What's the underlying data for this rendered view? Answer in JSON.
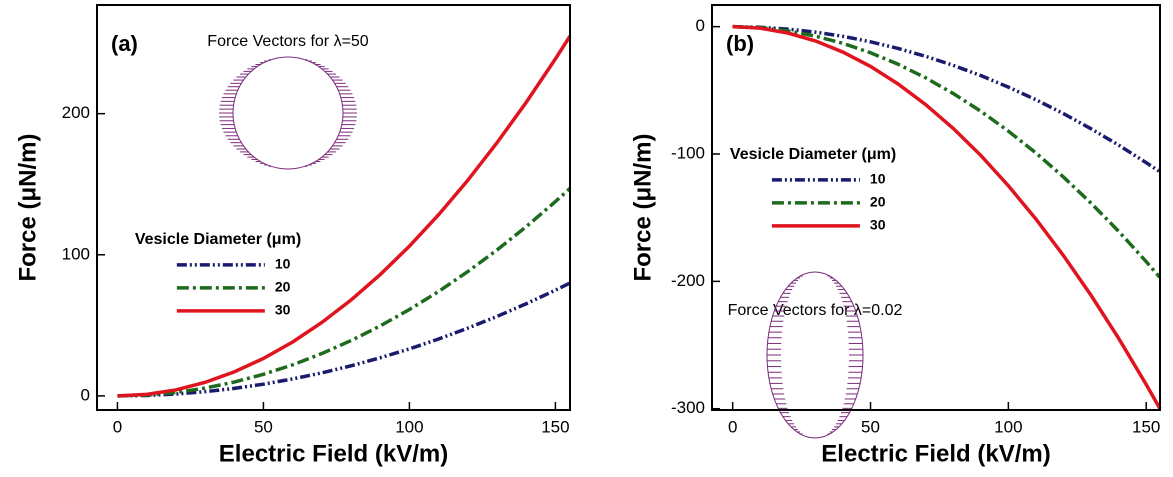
{
  "chart_data": [
    {
      "type": "line",
      "panel_label": "(a)",
      "xlabel": "Electric Field (kV/m)",
      "ylabel": "Force (μN/m)",
      "xlim": [
        -7,
        155
      ],
      "ylim": [
        -10,
        277
      ],
      "xticks": [
        0,
        50,
        100,
        150
      ],
      "yticks": [
        0,
        100,
        200
      ],
      "legend_title": "Vesicle Diameter (μm)",
      "legend": "center-left",
      "annotation": "Force Vectors for λ=50",
      "x": [
        0,
        10,
        20,
        30,
        40,
        50,
        60,
        70,
        80,
        90,
        100,
        110,
        120,
        130,
        140,
        150,
        155
      ],
      "series": [
        {
          "name": "10",
          "color": "#1a1a6e",
          "style": "dash-dot-dot",
          "values": [
            0,
            0.3,
            1.3,
            3.0,
            5.3,
            8.3,
            12.0,
            16.3,
            21.3,
            27.0,
            33.3,
            40.3,
            48.0,
            56.3,
            65.3,
            74.9,
            80
          ]
        },
        {
          "name": "20",
          "color": "#1e6b1e",
          "style": "dash-dot",
          "values": [
            0,
            0.6,
            2.4,
            5.5,
            9.8,
            15.3,
            22.0,
            30.0,
            39.2,
            49.6,
            61.2,
            74.0,
            88.1,
            103.4,
            119.9,
            137.7,
            147
          ]
        },
        {
          "name": "30",
          "color": "#e0141e",
          "style": "solid",
          "values": [
            0,
            1.1,
            4.2,
            9.6,
            17.0,
            26.5,
            38.2,
            52.0,
            67.9,
            86.0,
            106.1,
            128.4,
            152.8,
            179.4,
            208.0,
            238.8,
            255
          ]
        }
      ]
    },
    {
      "type": "line",
      "panel_label": "(b)",
      "xlabel": "Electric Field (kV/m)",
      "ylabel": "Force (μN/m)",
      "xlim": [
        -7.5,
        155
      ],
      "ylim": [
        -301,
        17
      ],
      "xticks": [
        0,
        50,
        100,
        150
      ],
      "yticks": [
        0,
        -100,
        -200,
        -300
      ],
      "legend_title": "Vesicle Diameter (μm)",
      "legend": "upper-left",
      "annotation": "Force Vectors for λ=0.02",
      "x": [
        0,
        10,
        20,
        30,
        40,
        50,
        60,
        70,
        80,
        90,
        100,
        110,
        120,
        130,
        140,
        150,
        155
      ],
      "series": [
        {
          "name": "10",
          "color": "#1a1a6e",
          "style": "dash-dot-dot",
          "values": [
            0,
            -0.5,
            -1.9,
            -4.3,
            -7.6,
            -11.9,
            -17.1,
            -23.3,
            -30.4,
            -38.4,
            -47.5,
            -57.4,
            -68.3,
            -80.2,
            -93.0,
            -106.8,
            -114
          ]
        },
        {
          "name": "20",
          "color": "#1e6b1e",
          "style": "dash-dot",
          "values": [
            0,
            -0.8,
            -3.3,
            -7.4,
            -13.1,
            -20.5,
            -29.5,
            -40.2,
            -52.5,
            -66.4,
            -82.0,
            -99.2,
            -118.1,
            -138.6,
            -160.7,
            -184.5,
            -197
          ]
        },
        {
          "name": "30",
          "color": "#e0141e",
          "style": "solid",
          "values": [
            0,
            -1.2,
            -5.0,
            -11.2,
            -20.0,
            -31.2,
            -45.0,
            -61.2,
            -79.9,
            -101.1,
            -124.9,
            -151.1,
            -179.8,
            -211.0,
            -244.7,
            -281.0,
            -300
          ]
        }
      ]
    }
  ]
}
